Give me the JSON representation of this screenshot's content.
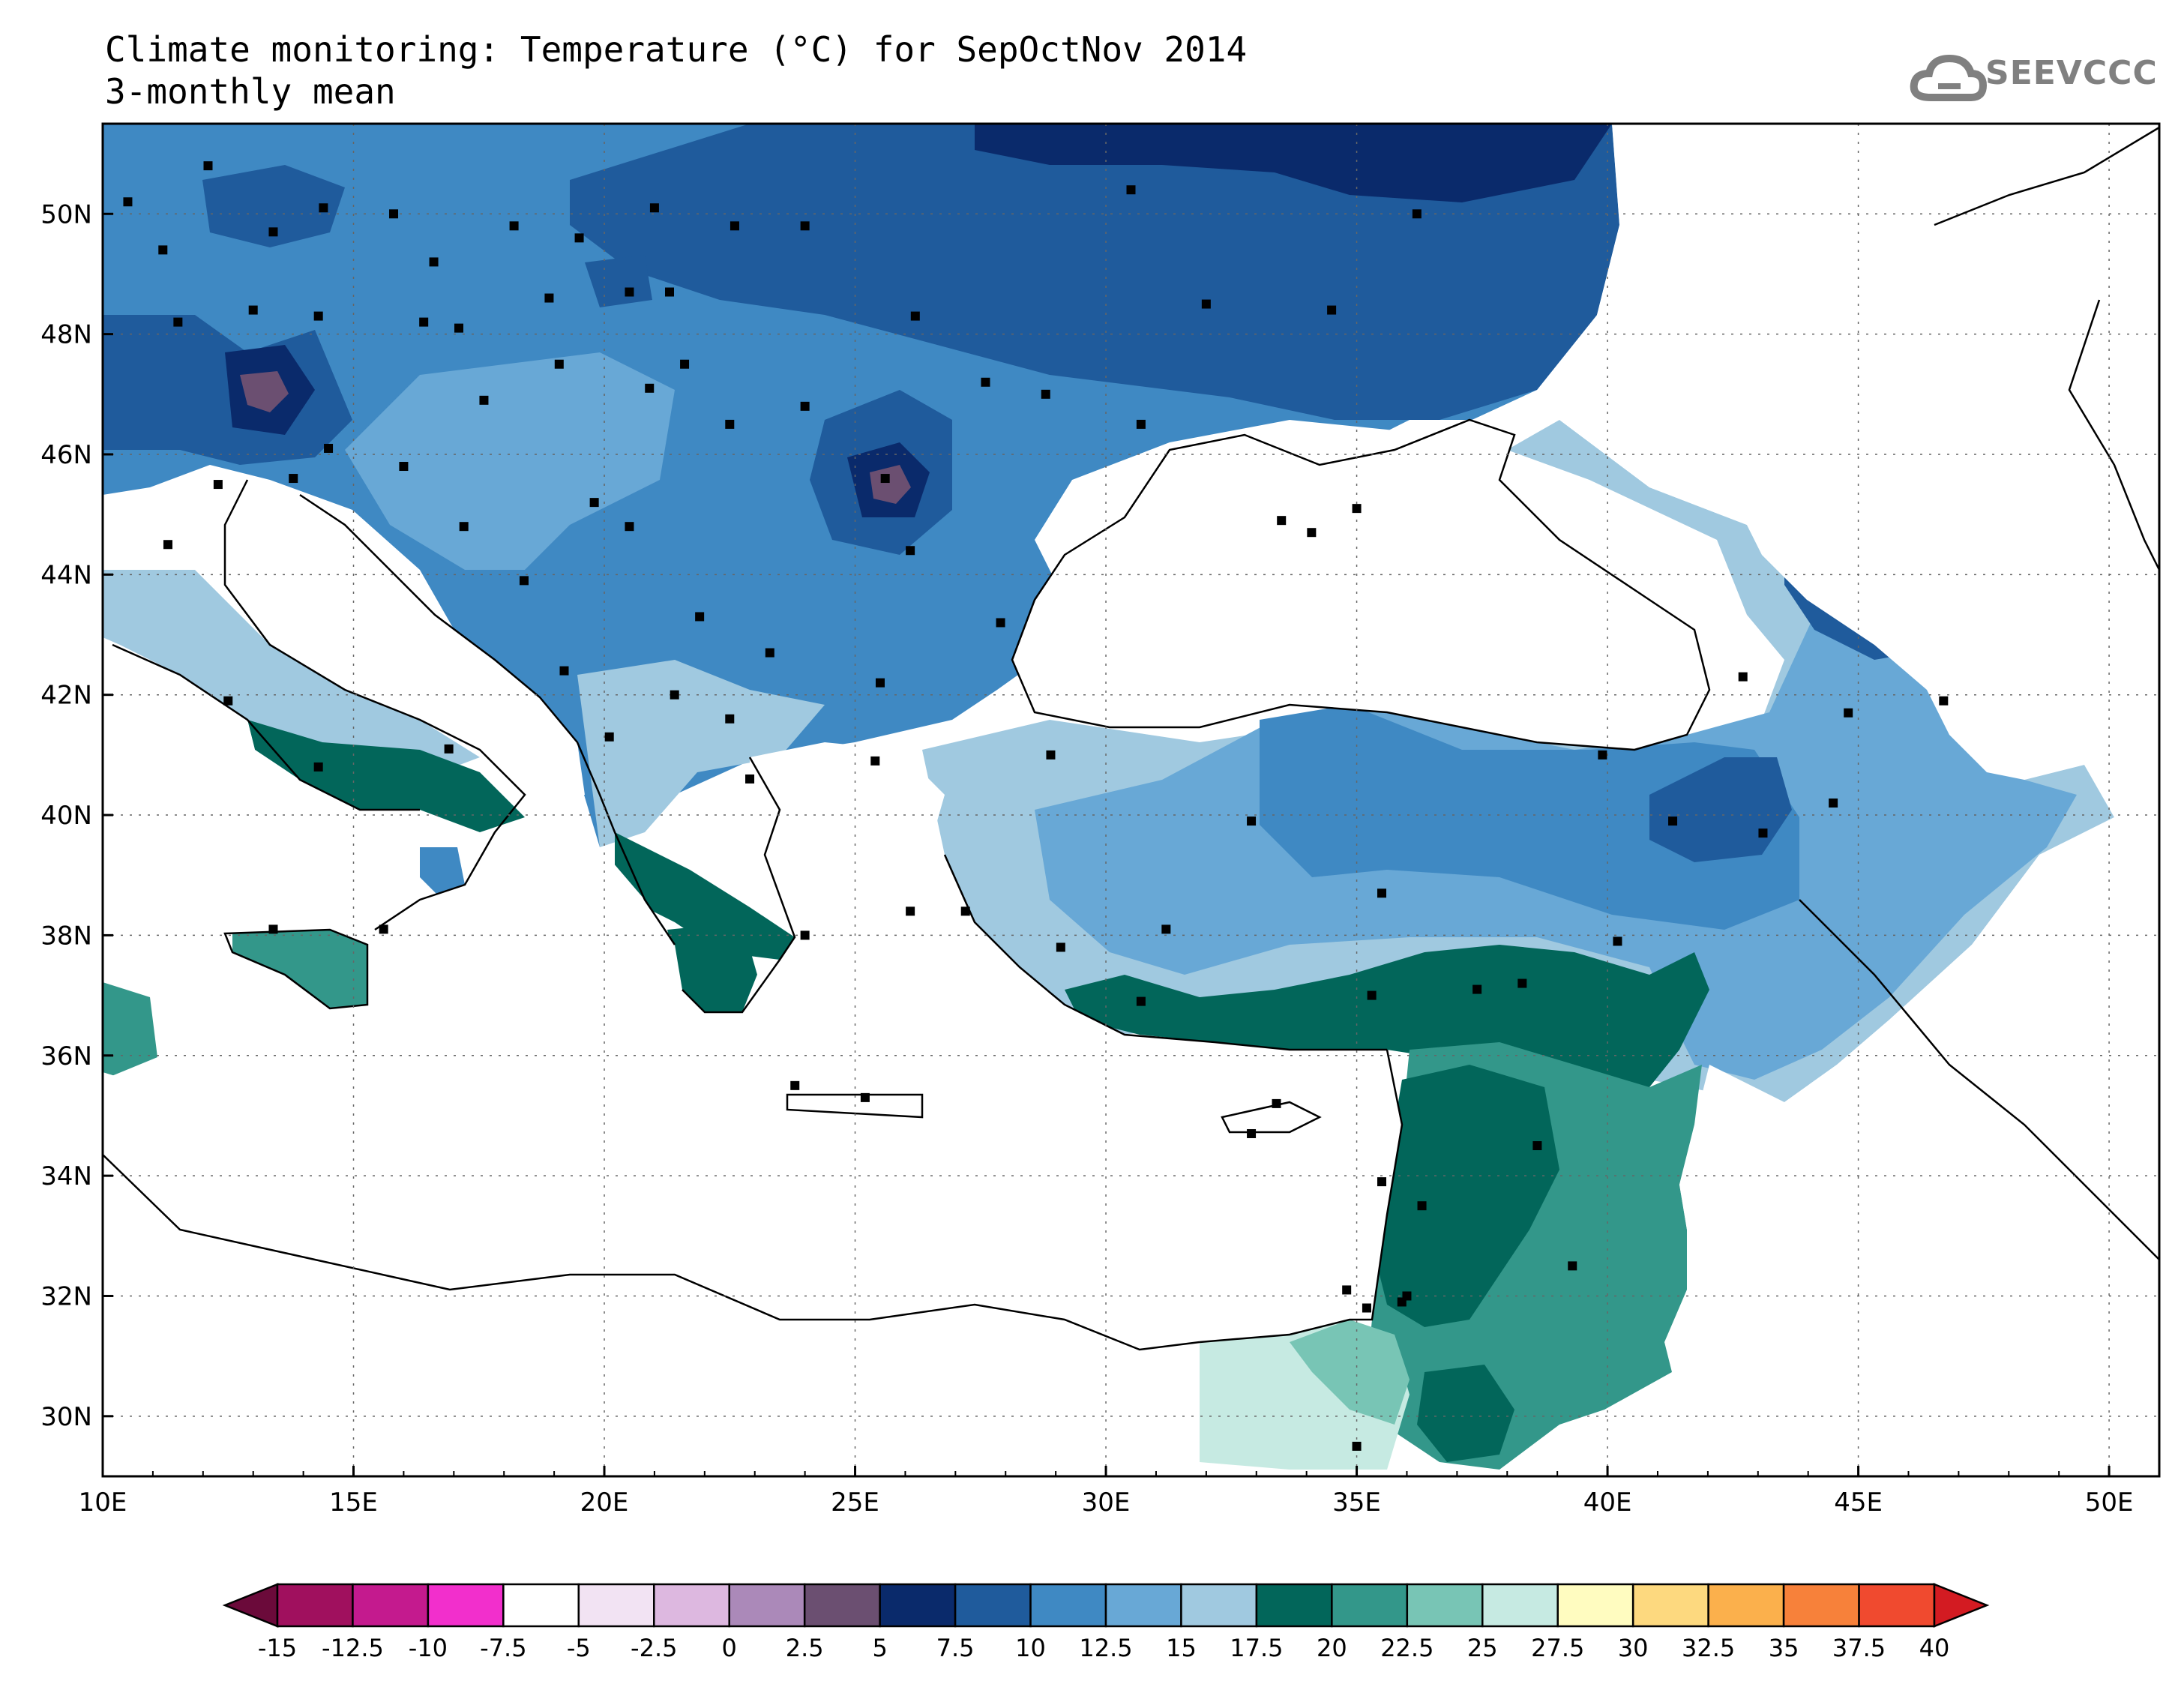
{
  "title": {
    "line1": "Climate monitoring: Temperature (°C) for SepOctNov 2014",
    "line2": "3-monthly mean"
  },
  "logo": {
    "text": "SEEVCCC",
    "icon": "cloud-icon",
    "color": "#808080"
  },
  "map": {
    "lon_range": [
      10,
      51
    ],
    "lat_range": [
      29,
      51.5
    ],
    "lon_ticks": [
      10,
      15,
      20,
      25,
      30,
      35,
      40,
      45,
      50
    ],
    "lon_tick_labels": [
      "10E",
      "15E",
      "20E",
      "25E",
      "30E",
      "35E",
      "40E",
      "45E",
      "50E"
    ],
    "lat_ticks": [
      30,
      32,
      34,
      36,
      38,
      40,
      42,
      44,
      46,
      48,
      50
    ],
    "lat_tick_labels": [
      "30N",
      "32N",
      "34N",
      "36N",
      "38N",
      "40N",
      "42N",
      "44N",
      "46N",
      "48N",
      "50N"
    ],
    "grid": "dotted",
    "variable": "Temperature (°C)",
    "period": "SepOctNov 2014",
    "statistic": "3-monthly mean"
  },
  "colorbar": {
    "labels": [
      "-15",
      "-12.5",
      "-10",
      "-7.5",
      "-5",
      "-2.5",
      "0",
      "2.5",
      "5",
      "7.5",
      "10",
      "12.5",
      "15",
      "17.5",
      "20",
      "22.5",
      "25",
      "27.5",
      "30",
      "32.5",
      "35",
      "37.5",
      "40"
    ],
    "bounds": [
      -15,
      -12.5,
      -10,
      -7.5,
      -5,
      -2.5,
      0,
      2.5,
      5,
      7.5,
      10,
      12.5,
      15,
      17.5,
      20,
      22.5,
      25,
      27.5,
      30,
      32.5,
      35,
      37.5,
      40
    ],
    "colors": [
      "#6b0a3a",
      "#a0105e",
      "#c41a8e",
      "#f22fcc",
      "#ffffff",
      "#f2e3f3",
      "#ddb8e0",
      "#ab89b9",
      "#6b4f71",
      "#0a2a6b",
      "#1f5b9c",
      "#3f89c3",
      "#68a8d6",
      "#a0c9e0",
      "#02665a",
      "#33978a",
      "#78c5b5",
      "#c6eae2",
      "#fffcc0",
      "#fdd97f",
      "#fbb04c",
      "#f7813a",
      "#f04a2f",
      "#d31b22"
    ]
  },
  "regions": [
    {
      "name": "central-europe-north",
      "value_class": "10-12.5",
      "color": "#3f89c3"
    },
    {
      "name": "ukraine-russia",
      "value_class": "7.5-10",
      "color": "#1f5b9c"
    },
    {
      "name": "carpathian-cold-spot",
      "value_class": "2.5-5",
      "color": "#6b4f71"
    },
    {
      "name": "alps-cold-spot",
      "value_class": "2.5-5",
      "color": "#6b4f71"
    },
    {
      "name": "balkans",
      "value_class": "10-12.5",
      "color": "#3f89c3"
    },
    {
      "name": "italy-coast",
      "value_class": "15-17.5",
      "color": "#a0c9e0"
    },
    {
      "name": "greece-south",
      "value_class": "17.5-20",
      "color": "#02665a"
    },
    {
      "name": "anatolia-plateau",
      "value_class": "12.5-15",
      "color": "#68a8d6"
    },
    {
      "name": "eastern-turkey",
      "value_class": "7.5-10",
      "color": "#1f5b9c"
    },
    {
      "name": "turkey-south-coast",
      "value_class": "17.5-20",
      "color": "#02665a"
    },
    {
      "name": "syria-jordan",
      "value_class": "20-22.5",
      "color": "#33978a"
    },
    {
      "name": "levant-coast",
      "value_class": "17.5-20",
      "color": "#02665a"
    },
    {
      "name": "sinai-negev",
      "value_class": "25-27.5",
      "color": "#c6eae2"
    },
    {
      "name": "sicily-crete-cyprus",
      "value_class": "20-22.5",
      "color": "#33978a"
    }
  ],
  "stations": [
    [
      10.5,
      50.2
    ],
    [
      11.2,
      49.4
    ],
    [
      12.1,
      50.8
    ],
    [
      13.4,
      49.7
    ],
    [
      14.4,
      50.1
    ],
    [
      15.8,
      50.0
    ],
    [
      16.6,
      49.2
    ],
    [
      18.2,
      49.8
    ],
    [
      19.5,
      49.6
    ],
    [
      21.0,
      50.1
    ],
    [
      22.6,
      49.8
    ],
    [
      11.5,
      48.2
    ],
    [
      13.0,
      48.4
    ],
    [
      14.3,
      48.3
    ],
    [
      16.4,
      48.2
    ],
    [
      17.1,
      48.1
    ],
    [
      18.9,
      48.6
    ],
    [
      20.5,
      48.7
    ],
    [
      21.3,
      48.7
    ],
    [
      17.6,
      46.9
    ],
    [
      19.1,
      47.5
    ],
    [
      20.9,
      47.1
    ],
    [
      21.6,
      47.5
    ],
    [
      22.5,
      46.5
    ],
    [
      24.0,
      46.8
    ],
    [
      25.6,
      45.6
    ],
    [
      26.1,
      44.4
    ],
    [
      27.6,
      47.2
    ],
    [
      28.8,
      47.0
    ],
    [
      30.7,
      46.5
    ],
    [
      30.5,
      50.4
    ],
    [
      24.0,
      49.8
    ],
    [
      26.2,
      48.3
    ],
    [
      32.0,
      48.5
    ],
    [
      34.5,
      48.4
    ],
    [
      36.2,
      50.0
    ],
    [
      33.5,
      44.9
    ],
    [
      34.1,
      44.7
    ],
    [
      35.0,
      45.1
    ],
    [
      19.8,
      45.2
    ],
    [
      20.5,
      44.8
    ],
    [
      21.9,
      43.3
    ],
    [
      23.3,
      42.7
    ],
    [
      25.5,
      42.2
    ],
    [
      27.9,
      43.2
    ],
    [
      22.5,
      41.6
    ],
    [
      21.4,
      42.0
    ],
    [
      20.1,
      41.3
    ],
    [
      19.2,
      42.4
    ],
    [
      18.4,
      43.9
    ],
    [
      17.2,
      44.8
    ],
    [
      16.0,
      45.8
    ],
    [
      14.5,
      46.1
    ],
    [
      13.8,
      45.6
    ],
    [
      12.3,
      45.5
    ],
    [
      11.3,
      44.5
    ],
    [
      12.5,
      41.9
    ],
    [
      14.3,
      40.8
    ],
    [
      16.9,
      41.1
    ],
    [
      15.6,
      38.1
    ],
    [
      13.4,
      38.1
    ],
    [
      24.0,
      38.0
    ],
    [
      22.9,
      40.6
    ],
    [
      25.4,
      40.9
    ],
    [
      28.9,
      41.0
    ],
    [
      32.9,
      39.9
    ],
    [
      35.5,
      38.7
    ],
    [
      39.9,
      41.0
    ],
    [
      41.3,
      39.9
    ],
    [
      43.1,
      39.7
    ],
    [
      44.5,
      40.2
    ],
    [
      44.8,
      41.7
    ],
    [
      42.7,
      42.3
    ],
    [
      46.7,
      41.9
    ],
    [
      30.7,
      36.9
    ],
    [
      35.3,
      37.0
    ],
    [
      37.4,
      37.1
    ],
    [
      38.3,
      37.2
    ],
    [
      40.2,
      37.9
    ],
    [
      36.3,
      33.5
    ],
    [
      35.5,
      33.9
    ],
    [
      36.0,
      32.0
    ],
    [
      35.9,
      31.9
    ],
    [
      35.2,
      31.8
    ],
    [
      34.8,
      32.1
    ],
    [
      35.0,
      29.5
    ],
    [
      38.6,
      34.5
    ],
    [
      39.3,
      32.5
    ],
    [
      33.4,
      35.2
    ],
    [
      32.9,
      34.7
    ],
    [
      25.2,
      35.3
    ],
    [
      23.8,
      35.5
    ],
    [
      26.1,
      38.4
    ],
    [
      27.2,
      38.4
    ],
    [
      29.1,
      37.8
    ],
    [
      31.2,
      38.1
    ]
  ]
}
